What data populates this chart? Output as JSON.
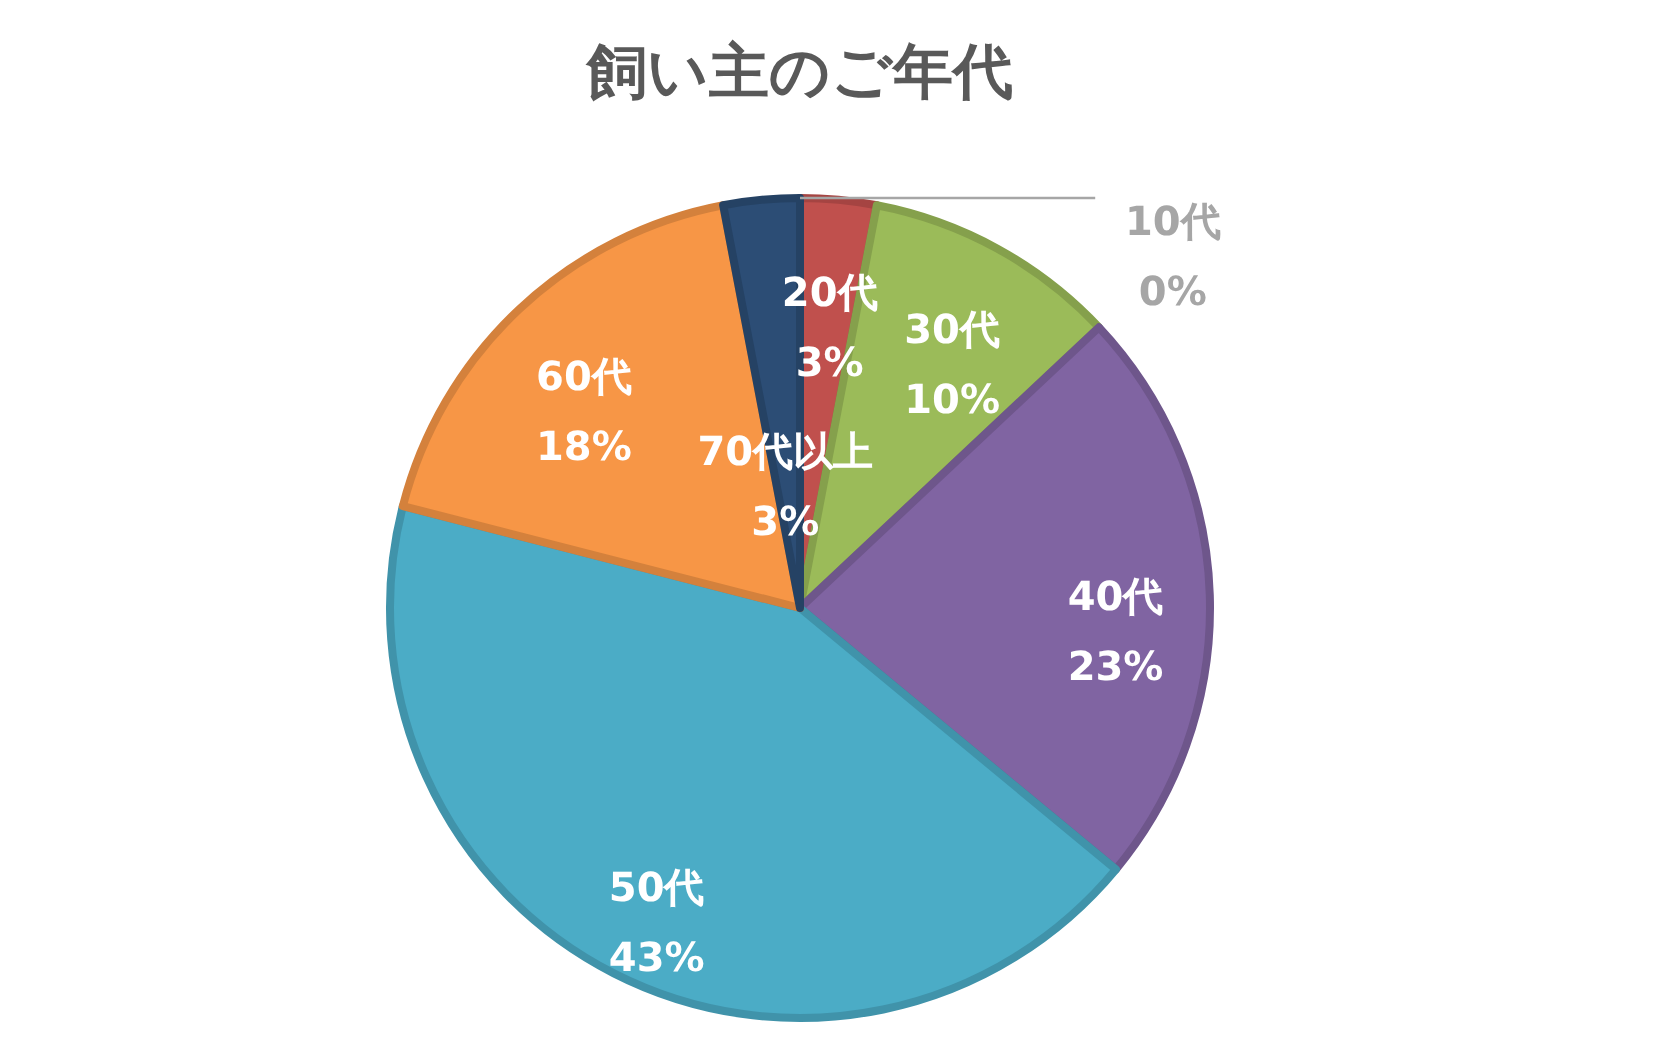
{
  "chart_data": {
    "type": "pie",
    "title": "飼い主のご年代",
    "categories": [
      "10代",
      "20代",
      "30代",
      "40代",
      "50代",
      "60代",
      "70代以上"
    ],
    "values": [
      0,
      3,
      10,
      23,
      43,
      18,
      3
    ],
    "value_labels": [
      "0%",
      "3%",
      "10%",
      "23%",
      "43%",
      "18%",
      "3%"
    ],
    "colors": [
      "#4f81bd",
      "#c0504d",
      "#9bbb59",
      "#8064a2",
      "#4bacc6",
      "#f79646",
      "#2c4d75"
    ]
  }
}
